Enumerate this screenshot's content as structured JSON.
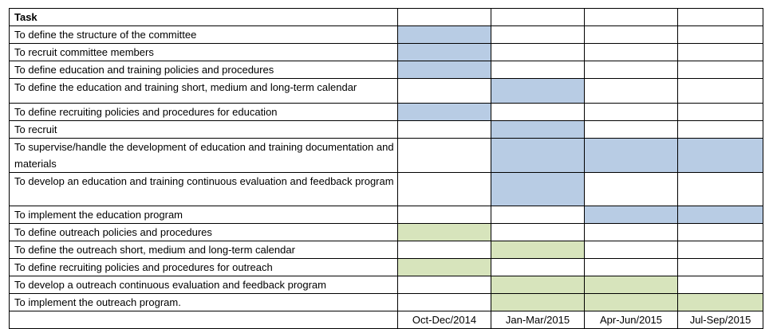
{
  "header": {
    "task_label": "Task"
  },
  "colors": {
    "committee": "#b8cce4",
    "outreach": "#d7e4bc",
    "empty": "#ffffff"
  },
  "rows": [
    {
      "task": "To define the structure of the committee",
      "cells": [
        "committee",
        "",
        "",
        ""
      ]
    },
    {
      "task": "To recruit committee members",
      "cells": [
        "committee",
        "",
        "",
        ""
      ]
    },
    {
      "task": "To define education and training policies and procedures",
      "cells": [
        "committee",
        "",
        "",
        ""
      ]
    },
    {
      "task": "To define the education and training short, medium and long-term calendar",
      "cells": [
        "",
        "committee",
        "",
        ""
      ]
    },
    {
      "task": "To define recruiting policies and procedures for education",
      "cells": [
        "committee",
        "",
        "",
        ""
      ]
    },
    {
      "task": "To recruit",
      "cells": [
        "",
        "committee",
        "",
        ""
      ]
    },
    {
      "task": "To supervise/handle the development of education and training documentation and materials",
      "cells": [
        "",
        "committee",
        "committee",
        "committee"
      ]
    },
    {
      "task": "To develop an education and training continuous evaluation and feedback program",
      "cells": [
        "",
        "committee",
        "",
        ""
      ]
    },
    {
      "task": "To implement the education program",
      "cells": [
        "",
        "",
        "committee",
        "committee"
      ]
    },
    {
      "task": "To define outreach policies and procedures",
      "cells": [
        "outreach",
        "",
        "",
        ""
      ]
    },
    {
      "task": "To define the outreach short, medium and long-term calendar",
      "cells": [
        "",
        "outreach",
        "",
        ""
      ]
    },
    {
      "task": "To define recruiting policies and procedures for outreach",
      "cells": [
        "outreach",
        "",
        "",
        ""
      ]
    },
    {
      "task": "To develop a outreach continuous evaluation and feedback program",
      "cells": [
        "",
        "outreach",
        "outreach",
        ""
      ]
    },
    {
      "task": "To implement the outreach program.",
      "cells": [
        "",
        "outreach",
        "outreach",
        "outreach"
      ]
    }
  ],
  "periods": [
    "Oct-Dec/2014",
    "Jan-Mar/2015",
    "Apr-Jun/2015",
    "Jul-Sep/2015"
  ]
}
